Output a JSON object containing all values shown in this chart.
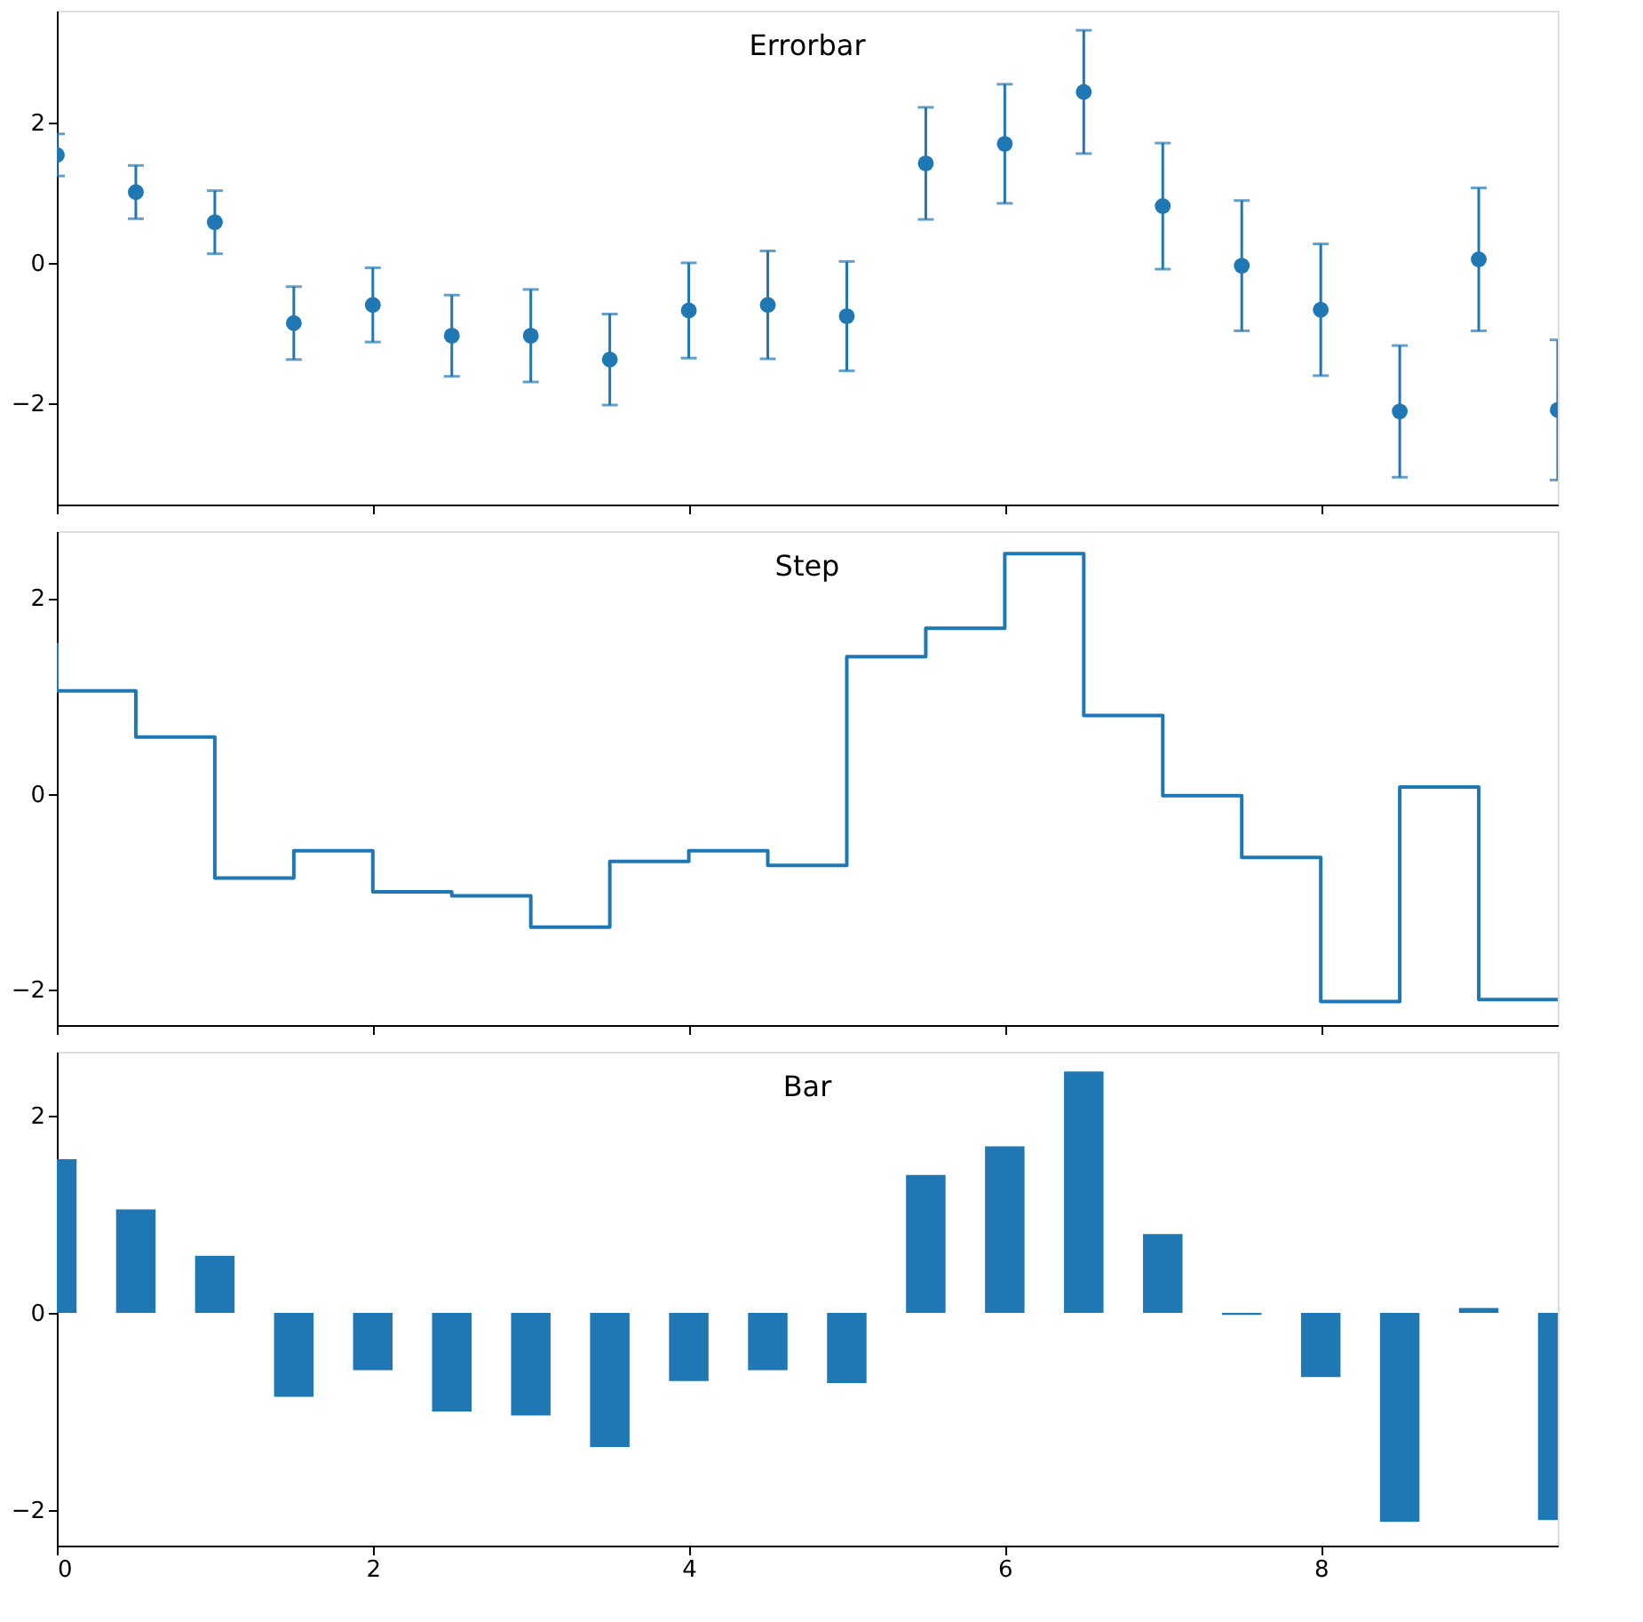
{
  "chart_data": [
    {
      "type": "scatter",
      "title": "Errorbar",
      "x": [
        0,
        0.5,
        1,
        1.5,
        2,
        2.5,
        3,
        3.5,
        4,
        4.5,
        5,
        5.5,
        6,
        6.5,
        7,
        7.5,
        8,
        8.5,
        9,
        9.5
      ],
      "series": [
        {
          "color": "#1f77b4",
          "values": [
            1.54,
            1.01,
            0.58,
            -0.86,
            -0.6,
            -1.04,
            -1.04,
            -1.38,
            -0.68,
            -0.6,
            -0.76,
            1.42,
            1.7,
            2.44,
            0.81,
            -0.04,
            -0.67,
            -2.12,
            0.05,
            -2.1
          ],
          "errors": [
            0.3,
            0.38,
            0.45,
            0.52,
            0.53,
            0.58,
            0.66,
            0.65,
            0.68,
            0.77,
            0.78,
            0.8,
            0.85,
            0.88,
            0.9,
            0.93,
            0.94,
            0.94,
            1.02,
            1.0
          ]
        }
      ],
      "marker": "circle",
      "xlim": [
        0,
        9.5
      ],
      "ylim": [
        -3.45,
        3.6
      ],
      "xticks": [
        0,
        2,
        4,
        6,
        8
      ],
      "yticks": [
        -2,
        0,
        2
      ],
      "tick_labels": "y",
      "grid": false
    },
    {
      "type": "step",
      "title": "Step",
      "x": [
        0,
        0.5,
        1,
        1.5,
        2,
        2.5,
        3,
        3.5,
        4,
        4.5,
        5,
        5.5,
        6,
        6.5,
        7,
        7.5,
        8,
        8.5,
        9,
        9.5
      ],
      "series": [
        {
          "color": "#1f77b4",
          "values": [
            1.54,
            1.05,
            0.58,
            -0.86,
            -0.58,
            -1.0,
            -1.04,
            -1.36,
            -0.69,
            -0.58,
            -0.73,
            1.4,
            1.69,
            2.45,
            0.8,
            -0.02,
            -0.65,
            -2.12,
            0.07,
            -2.1
          ]
        }
      ],
      "line_style": "solid",
      "xlim": [
        0,
        9.5
      ],
      "ylim": [
        -2.36,
        2.68
      ],
      "xticks": [
        0,
        2,
        4,
        6,
        8
      ],
      "yticks": [
        -2,
        0,
        2
      ],
      "tick_labels": "y",
      "grid": false
    },
    {
      "type": "bar",
      "title": "Bar",
      "x": [
        0,
        0.5,
        1,
        1.5,
        2,
        2.5,
        3,
        3.5,
        4,
        4.5,
        5,
        5.5,
        6,
        6.5,
        7,
        7.5,
        8,
        8.5,
        9,
        9.5
      ],
      "series": [
        {
          "color": "#1f77b4",
          "values": [
            1.56,
            1.05,
            0.58,
            -0.85,
            -0.58,
            -1.0,
            -1.04,
            -1.36,
            -0.69,
            -0.58,
            -0.71,
            1.4,
            1.69,
            2.45,
            0.8,
            -0.02,
            -0.65,
            -2.12,
            0.05,
            -2.1
          ]
        }
      ],
      "xlim": [
        0,
        9.5
      ],
      "ylim": [
        -2.36,
        2.65
      ],
      "xticks": [
        0,
        2,
        4,
        6,
        8
      ],
      "yticks": [
        -2,
        0,
        2
      ],
      "grid": false
    }
  ]
}
